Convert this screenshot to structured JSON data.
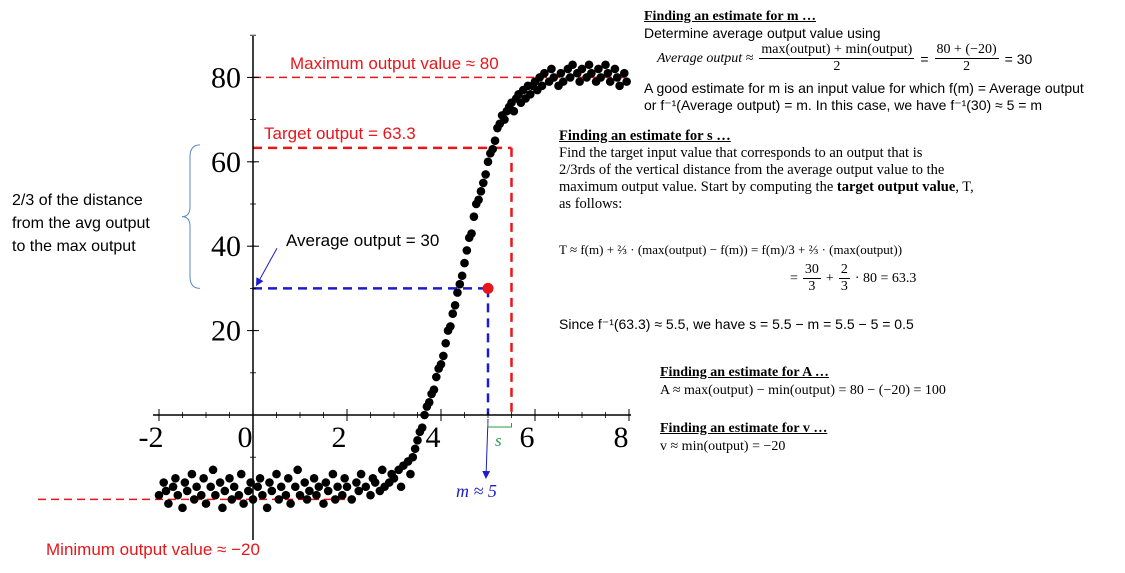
{
  "chart_data": {
    "type": "scatter",
    "xlim": [
      -2,
      8
    ],
    "ylim": [
      -20,
      80
    ],
    "x_ticks": [
      "-2",
      "0",
      "2",
      "4",
      "6",
      "8"
    ],
    "y_ticks": [
      "20",
      "40",
      "60",
      "80"
    ],
    "grid": false,
    "series": [
      {
        "points": [
          [
            -2.0,
            -19
          ],
          [
            -1.9,
            -16
          ],
          [
            -1.85,
            -18
          ],
          [
            -1.8,
            -21
          ],
          [
            -1.7,
            -17
          ],
          [
            -1.65,
            -15
          ],
          [
            -1.6,
            -19
          ],
          [
            -1.5,
            -22
          ],
          [
            -1.45,
            -16
          ],
          [
            -1.4,
            -18
          ],
          [
            -1.3,
            -14
          ],
          [
            -1.25,
            -20
          ],
          [
            -1.2,
            -17
          ],
          [
            -1.1,
            -19
          ],
          [
            -1.05,
            -15
          ],
          [
            -1.0,
            -21
          ],
          [
            -0.9,
            -17
          ],
          [
            -0.85,
            -13
          ],
          [
            -0.8,
            -19
          ],
          [
            -0.7,
            -16
          ],
          [
            -0.65,
            -22
          ],
          [
            -0.6,
            -18
          ],
          [
            -0.5,
            -15
          ],
          [
            -0.45,
            -20
          ],
          [
            -0.4,
            -17
          ],
          [
            -0.3,
            -19
          ],
          [
            -0.25,
            -14
          ],
          [
            -0.2,
            -21
          ],
          [
            -0.1,
            -18
          ],
          [
            -0.05,
            -16
          ],
          [
            0.0,
            -20
          ],
          [
            0.1,
            -17
          ],
          [
            0.15,
            -15
          ],
          [
            0.2,
            -19
          ],
          [
            0.3,
            -22
          ],
          [
            0.35,
            -16
          ],
          [
            0.4,
            -18
          ],
          [
            0.5,
            -14
          ],
          [
            0.55,
            -20
          ],
          [
            0.6,
            -17
          ],
          [
            0.7,
            -19
          ],
          [
            0.75,
            -15
          ],
          [
            0.8,
            -21
          ],
          [
            0.9,
            -17
          ],
          [
            0.95,
            -13
          ],
          [
            1.0,
            -19
          ],
          [
            1.1,
            -16
          ],
          [
            1.15,
            -20
          ],
          [
            1.2,
            -18
          ],
          [
            1.3,
            -15
          ],
          [
            1.35,
            -19
          ],
          [
            1.4,
            -17
          ],
          [
            1.5,
            -21
          ],
          [
            1.55,
            -16
          ],
          [
            1.6,
            -18
          ],
          [
            1.7,
            -14
          ],
          [
            1.75,
            -20
          ],
          [
            1.8,
            -17
          ],
          [
            1.9,
            -19
          ],
          [
            1.95,
            -15
          ],
          [
            2.0,
            -17
          ],
          [
            2.1,
            -20
          ],
          [
            2.2,
            -16
          ],
          [
            2.25,
            -18
          ],
          [
            2.3,
            -14
          ],
          [
            2.4,
            -17
          ],
          [
            2.5,
            -19
          ],
          [
            2.55,
            -15
          ],
          [
            2.6,
            -16
          ],
          [
            2.7,
            -18
          ],
          [
            2.75,
            -13
          ],
          [
            2.8,
            -17
          ],
          [
            2.9,
            -16
          ],
          [
            2.95,
            -14
          ],
          [
            3.0,
            -15
          ],
          [
            3.1,
            -13
          ],
          [
            3.15,
            -17
          ],
          [
            3.2,
            -12
          ],
          [
            3.3,
            -11
          ],
          [
            3.35,
            -14
          ],
          [
            3.4,
            -10
          ],
          [
            3.45,
            -8
          ],
          [
            3.5,
            -6
          ],
          [
            3.55,
            -4
          ],
          [
            3.6,
            -3
          ],
          [
            3.65,
            0
          ],
          [
            3.7,
            2
          ],
          [
            3.75,
            3
          ],
          [
            3.8,
            5
          ],
          [
            3.85,
            6
          ],
          [
            3.9,
            9
          ],
          [
            3.95,
            11
          ],
          [
            4.0,
            12
          ],
          [
            4.05,
            14
          ],
          [
            4.1,
            17
          ],
          [
            4.15,
            20
          ],
          [
            4.2,
            21
          ],
          [
            4.25,
            24
          ],
          [
            4.3,
            26
          ],
          [
            4.35,
            29
          ],
          [
            4.4,
            31
          ],
          [
            4.45,
            33
          ],
          [
            4.5,
            36
          ],
          [
            4.55,
            39
          ],
          [
            4.6,
            42
          ],
          [
            4.65,
            43
          ],
          [
            4.7,
            47
          ],
          [
            4.75,
            50
          ],
          [
            4.8,
            51
          ],
          [
            4.85,
            53
          ],
          [
            4.9,
            55
          ],
          [
            4.95,
            57
          ],
          [
            5.0,
            60
          ],
          [
            5.05,
            62
          ],
          [
            5.1,
            63
          ],
          [
            5.15,
            65
          ],
          [
            5.2,
            68
          ],
          [
            5.25,
            69
          ],
          [
            5.3,
            71
          ],
          [
            5.35,
            70
          ],
          [
            5.4,
            72
          ],
          [
            5.45,
            73
          ],
          [
            5.5,
            74
          ],
          [
            5.55,
            72
          ],
          [
            5.6,
            75
          ],
          [
            5.65,
            76
          ],
          [
            5.7,
            74
          ],
          [
            5.75,
            77
          ],
          [
            5.8,
            75
          ],
          [
            5.85,
            78
          ],
          [
            5.9,
            76
          ],
          [
            5.95,
            78
          ],
          [
            6.0,
            79
          ],
          [
            6.05,
            77
          ],
          [
            6.1,
            80
          ],
          [
            6.15,
            78
          ],
          [
            6.2,
            81
          ],
          [
            6.3,
            79
          ],
          [
            6.35,
            82
          ],
          [
            6.4,
            80
          ],
          [
            6.5,
            78
          ],
          [
            6.55,
            81
          ],
          [
            6.6,
            79
          ],
          [
            6.7,
            82
          ],
          [
            6.75,
            80
          ],
          [
            6.8,
            83
          ],
          [
            6.9,
            81
          ],
          [
            6.95,
            79
          ],
          [
            7.0,
            82
          ],
          [
            7.1,
            80
          ],
          [
            7.15,
            83
          ],
          [
            7.2,
            81
          ],
          [
            7.3,
            79
          ],
          [
            7.35,
            82
          ],
          [
            7.4,
            80
          ],
          [
            7.5,
            83
          ],
          [
            7.55,
            81
          ],
          [
            7.6,
            79
          ],
          [
            7.7,
            82
          ],
          [
            7.75,
            80
          ],
          [
            7.8,
            78
          ],
          [
            7.9,
            81
          ],
          [
            7.95,
            79
          ]
        ]
      }
    ],
    "highlight_point": [
      5,
      30
    ],
    "reference_lines": {
      "max_y": 80,
      "min_y": -20,
      "target_y": 63.3,
      "avg_y": 30,
      "m_x": 5,
      "target_x": 5.5
    }
  },
  "annotations": {
    "max_label": "Maximum output value ≈ 80",
    "min_label": "Minimum output value ≈ −20",
    "target_label": "Target output = 63.3",
    "avg_label": "Average output = 30",
    "two_thirds_label_1": "2/3 of the distance",
    "two_thirds_label_2": "from the avg output",
    "two_thirds_label_3": "to the max output",
    "m_label": "m ≈ 5",
    "s_label": "s"
  },
  "explanation": {
    "m_heading": "Finding an estimate for m …",
    "m_line1": "Determine average output value using",
    "m_avg_lhs": "Average output ≈",
    "m_frac1_num": "max(output) + min(output)",
    "m_frac1_den": "2",
    "m_eq": "=",
    "m_frac2_num": "80 + (−20)",
    "m_frac2_den": "2",
    "m_result": "= 30",
    "m_line3": "A good estimate for m is an input value for which f(m) = Average output",
    "m_line4": "or f⁻¹(Average output) = m.  In this case, we have f⁻¹(30) ≈ 5 = m",
    "s_heading": "Finding an estimate for s …",
    "s_line1": "Find the target input value that corresponds to an output that is",
    "s_line2": "2/3rds of the vertical distance from the average output value to the",
    "s_line3": "maximum output value.  Start by computing the",
    "s_line3_bold": "target output value",
    "s_line3_end": ", T,",
    "s_line4": "as follows:",
    "s_formula1": "T ≈ f(m) + ⅔ · (max(output) − f(m)) = f(m)/3 + ⅔ · (max(output))",
    "s_formula2_eq": "=",
    "s_formula2_f1_num": "30",
    "s_formula2_f1_den": "3",
    "s_formula2_plus": "+",
    "s_formula2_f2_num": "2",
    "s_formula2_f2_den": "3",
    "s_formula2_end": "· 80 = 63.3",
    "s_since": "Since f⁻¹(63.3) ≈ 5.5, we have s = 5.5 − m = 5.5 − 5 = 0.5",
    "a_heading": "Finding an estimate for A …",
    "a_line": "A ≈ max(output) − min(output) = 80 − (−20) = 100",
    "v_heading": "Finding an estimate for v …",
    "v_line": "v ≈ min(output) = −20"
  },
  "colors": {
    "red": "#e8161b",
    "blue": "#1c1ccd",
    "green": "#2e9a48",
    "bracket": "#5b87c5",
    "points": "#000000",
    "highlight": "#e8161b"
  }
}
